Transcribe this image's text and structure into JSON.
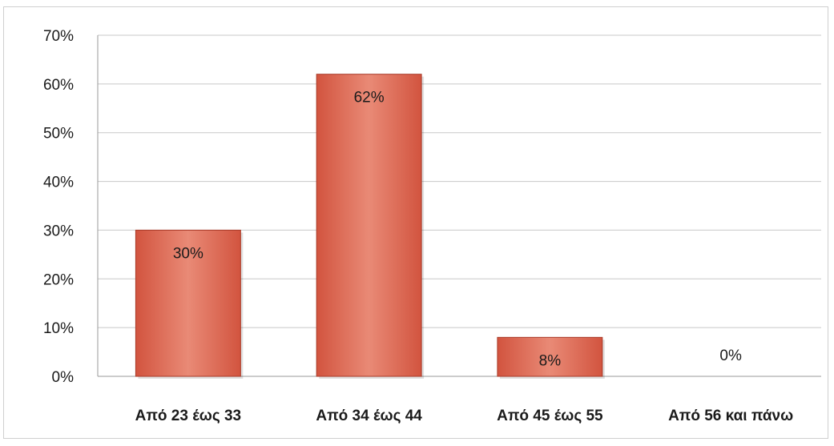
{
  "chart_data": {
    "type": "bar",
    "categories": [
      "Από 23 έως 33",
      "Από 34 έως 44",
      "Από 45 έως 55",
      "Από 56 και πάνω"
    ],
    "values": [
      30,
      62,
      8,
      0
    ],
    "data_labels": [
      "30%",
      "62%",
      "8%",
      "0%"
    ],
    "y_tick_labels": [
      "0%",
      "10%",
      "20%",
      "30%",
      "40%",
      "50%",
      "60%",
      "70%"
    ],
    "ylim": [
      0,
      70
    ],
    "y_unit": "%",
    "grid": true,
    "legend": "none",
    "title": "",
    "xlabel": "",
    "ylabel": "",
    "colors": {
      "bar_fill": "#d2543f",
      "bar_highlight": "#e98a76",
      "bar_edge": "#a93a28",
      "grid": "#c8c8c8",
      "axis": "#9a9a9a"
    }
  }
}
